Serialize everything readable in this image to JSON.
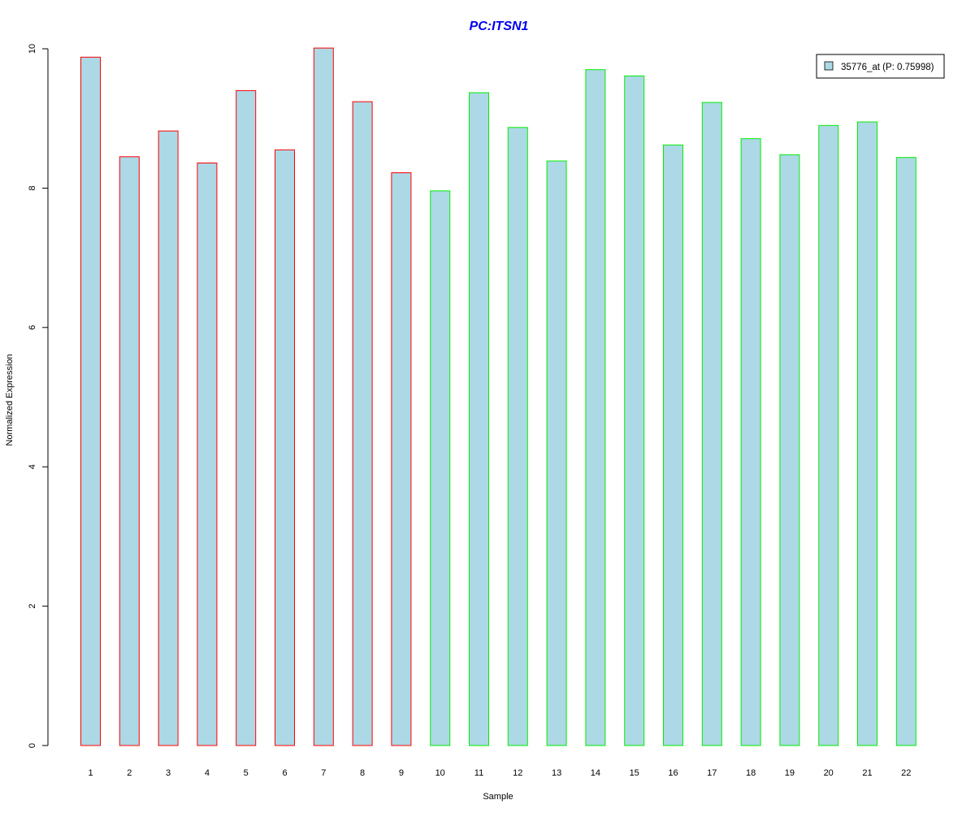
{
  "chart_data": {
    "type": "bar",
    "title": "PC:ITSN1",
    "xlabel": "Sample",
    "ylabel": "Normalized Expression",
    "ylim": [
      0,
      10
    ],
    "yticks": [
      "0",
      "2",
      "4",
      "6",
      "8",
      "10"
    ],
    "categories": [
      "1",
      "2",
      "3",
      "4",
      "5",
      "6",
      "7",
      "8",
      "9",
      "10",
      "11",
      "12",
      "13",
      "14",
      "15",
      "16",
      "17",
      "18",
      "19",
      "20",
      "21",
      "22"
    ],
    "series": [
      {
        "name": "35776_at (P: 0.75998)",
        "values": [
          9.88,
          8.45,
          8.82,
          8.36,
          9.4,
          8.55,
          10.01,
          9.24,
          8.22,
          7.96,
          9.37,
          8.87,
          8.39,
          9.7,
          9.61,
          8.62,
          9.23,
          8.71,
          8.48,
          8.9,
          8.95,
          8.44
        ]
      }
    ],
    "groups": [
      "red",
      "red",
      "red",
      "red",
      "red",
      "red",
      "red",
      "red",
      "red",
      "green",
      "green",
      "green",
      "green",
      "green",
      "green",
      "green",
      "green",
      "green",
      "green",
      "green",
      "green",
      "green"
    ],
    "colors": {
      "bar_fill": "#add8e6",
      "title": "#0000ee",
      "red": "#ff0000",
      "green": "#00ee00"
    },
    "legend": {
      "label": "35776_at (P: 0.75998)",
      "placement": "top-right"
    },
    "grid": false
  }
}
